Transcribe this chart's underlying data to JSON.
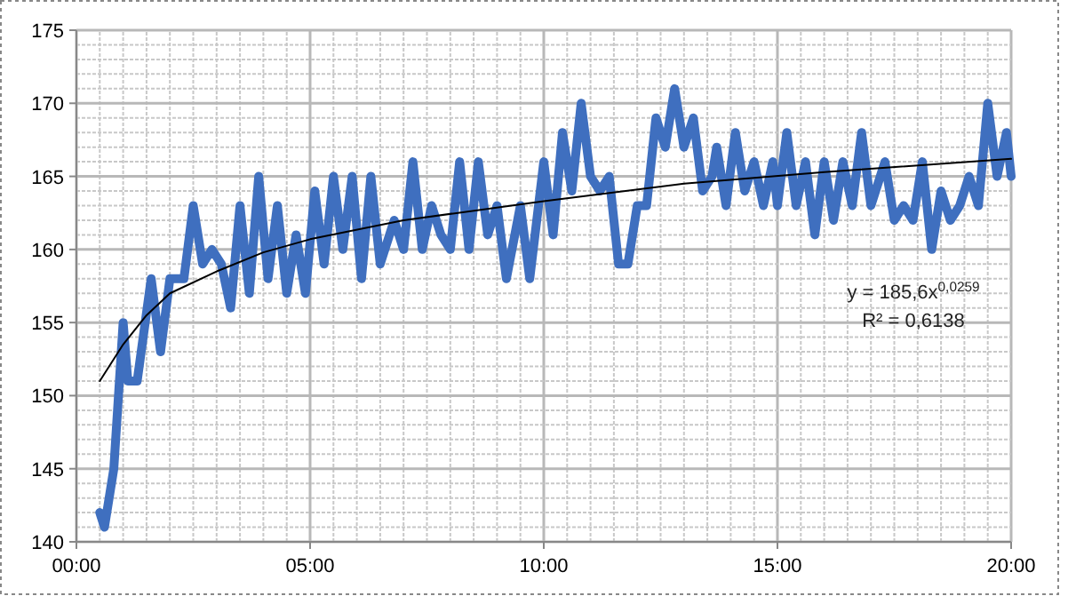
{
  "chart_data": {
    "type": "line",
    "x": [
      0.5,
      0.6,
      0.8,
      1.0,
      1.1,
      1.3,
      1.6,
      1.8,
      2.0,
      2.3,
      2.5,
      2.7,
      2.9,
      3.1,
      3.3,
      3.5,
      3.7,
      3.9,
      4.1,
      4.3,
      4.5,
      4.7,
      4.9,
      5.1,
      5.3,
      5.5,
      5.7,
      5.9,
      6.1,
      6.3,
      6.5,
      6.8,
      7.0,
      7.2,
      7.4,
      7.6,
      7.8,
      8.0,
      8.2,
      8.4,
      8.6,
      8.8,
      9.0,
      9.2,
      9.5,
      9.7,
      10.0,
      10.2,
      10.4,
      10.6,
      10.8,
      11.0,
      11.2,
      11.4,
      11.6,
      11.8,
      12.0,
      12.2,
      12.4,
      12.6,
      12.8,
      13.0,
      13.2,
      13.4,
      13.6,
      13.7,
      13.9,
      14.1,
      14.3,
      14.5,
      14.7,
      14.9,
      15.0,
      15.2,
      15.4,
      15.6,
      15.8,
      16.0,
      16.2,
      16.4,
      16.6,
      16.8,
      17.0,
      17.3,
      17.5,
      17.7,
      17.9,
      18.1,
      18.3,
      18.5,
      18.7,
      18.9,
      19.1,
      19.3,
      19.5,
      19.7,
      19.9,
      20.0
    ],
    "series": [
      {
        "color": "#3f6fbf",
        "values": [
          142,
          141,
          145,
          155,
          151,
          151,
          158,
          153,
          158,
          158,
          163,
          159,
          160,
          159,
          156,
          163,
          157,
          165,
          158,
          163,
          157,
          161,
          157,
          164,
          159,
          165,
          160,
          165,
          158,
          165,
          159,
          162,
          160,
          166,
          160,
          163,
          161,
          160,
          166,
          160,
          166,
          161,
          163,
          158,
          163,
          158,
          166,
          161,
          168,
          164,
          170,
          165,
          164,
          165,
          159,
          159,
          163,
          163,
          169,
          167,
          171,
          167,
          169,
          164,
          165,
          167,
          163,
          168,
          164,
          166,
          163,
          166,
          163,
          168,
          163,
          166,
          161,
          166,
          162,
          166,
          163,
          168,
          163,
          166,
          162,
          163,
          162,
          166,
          160,
          164,
          162,
          163,
          165,
          163,
          170,
          165,
          168,
          165
        ]
      },
      {
        "type": "line",
        "color": "#000000",
        "x": [
          0.5,
          1,
          1.5,
          2,
          3,
          4,
          5,
          7,
          10,
          13,
          16,
          20
        ],
        "values": [
          151,
          153.5,
          155.5,
          157,
          158.5,
          159.8,
          160.7,
          162,
          163.3,
          164.5,
          165.3,
          166.2
        ]
      }
    ],
    "xlim": [
      0,
      20
    ],
    "ylim": [
      140,
      175
    ],
    "xticks": [
      {
        "value": 0,
        "label": "00:00"
      },
      {
        "value": 0.5,
        "label": null
      },
      {
        "value": 1,
        "label": null
      },
      {
        "value": 1.5,
        "label": null
      },
      {
        "value": 2,
        "label": null
      },
      {
        "value": 2.5,
        "label": null
      },
      {
        "value": 3,
        "label": null
      },
      {
        "value": 3.5,
        "label": null
      },
      {
        "value": 4,
        "label": null
      },
      {
        "value": 4.5,
        "label": null
      },
      {
        "value": 5,
        "label": "05:00"
      },
      {
        "value": 5.5,
        "label": null
      },
      {
        "value": 6,
        "label": null
      },
      {
        "value": 6.5,
        "label": null
      },
      {
        "value": 7,
        "label": null
      },
      {
        "value": 7.5,
        "label": null
      },
      {
        "value": 8,
        "label": null
      },
      {
        "value": 8.5,
        "label": null
      },
      {
        "value": 9,
        "label": null
      },
      {
        "value": 9.5,
        "label": null
      },
      {
        "value": 10,
        "label": "10:00"
      },
      {
        "value": 10.5,
        "label": null
      },
      {
        "value": 11,
        "label": null
      },
      {
        "value": 11.5,
        "label": null
      },
      {
        "value": 12,
        "label": null
      },
      {
        "value": 12.5,
        "label": null
      },
      {
        "value": 13,
        "label": null
      },
      {
        "value": 13.5,
        "label": null
      },
      {
        "value": 14,
        "label": null
      },
      {
        "value": 14.5,
        "label": null
      },
      {
        "value": 15,
        "label": "15:00"
      },
      {
        "value": 15.5,
        "label": null
      },
      {
        "value": 16,
        "label": null
      },
      {
        "value": 16.5,
        "label": null
      },
      {
        "value": 17,
        "label": null
      },
      {
        "value": 17.5,
        "label": null
      },
      {
        "value": 18,
        "label": null
      },
      {
        "value": 18.5,
        "label": null
      },
      {
        "value": 19,
        "label": null
      },
      {
        "value": 19.5,
        "label": null
      },
      {
        "value": 20,
        "label": "20:00"
      }
    ],
    "yticks": [
      140,
      {
        "value": 141,
        "label": null
      },
      {
        "value": 142,
        "label": null
      },
      {
        "value": 143,
        "label": null
      },
      {
        "value": 144,
        "label": null
      },
      145,
      {
        "value": 146,
        "label": null
      },
      {
        "value": 147,
        "label": null
      },
      {
        "value": 148,
        "label": null
      },
      {
        "value": 149,
        "label": null
      },
      150,
      {
        "value": 151,
        "label": null
      },
      {
        "value": 152,
        "label": null
      },
      {
        "value": 153,
        "label": null
      },
      {
        "value": 154,
        "label": null
      },
      155,
      {
        "value": 156,
        "label": null
      },
      {
        "value": 157,
        "label": null
      },
      {
        "value": 158,
        "label": null
      },
      {
        "value": 159,
        "label": null
      },
      160,
      {
        "value": 161,
        "label": null
      },
      {
        "value": 162,
        "label": null
      },
      {
        "value": 163,
        "label": null
      },
      {
        "value": 164,
        "label": null
      },
      165,
      {
        "value": 166,
        "label": null
      },
      {
        "value": 167,
        "label": null
      },
      {
        "value": 168,
        "label": null
      },
      {
        "value": 169,
        "label": null
      },
      170,
      {
        "value": 171,
        "label": null
      },
      {
        "value": 172,
        "label": null
      },
      {
        "value": 173,
        "label": null
      },
      {
        "value": 174,
        "label": null
      },
      175
    ],
    "grid": true,
    "annotations": [
      "y = 185,6x$^{0,0259}$",
      "R² = 0,6138"
    ]
  }
}
